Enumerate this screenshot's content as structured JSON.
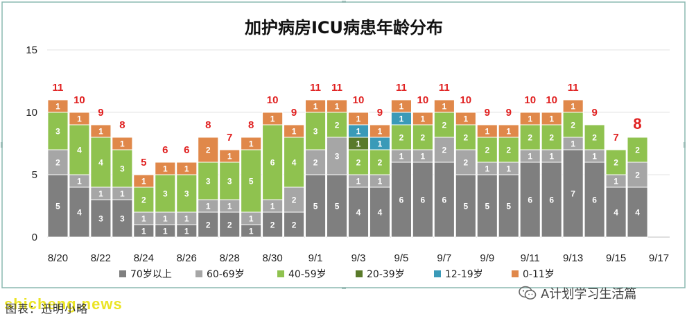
{
  "colors": {
    "70_plus": "#7f7f7f",
    "60_69": "#a6a6a6",
    "40_59": "#8fc24f",
    "20_39": "#5a7a2a",
    "12_19": "#3a9ab8",
    "0_11": "#e0884a",
    "total_label": "#e02020",
    "frame_border": "#8ab8b0"
  },
  "footer": {
    "source": "图表：迅明小略",
    "watermark": "shicheng.news",
    "brand": "A计划学习生活篇",
    "brand_icon": "wechat-icon"
  },
  "chart_data": {
    "type": "bar",
    "stacked": true,
    "title": "加护病房ICU病患年龄分布",
    "xlabel": "",
    "ylabel": "",
    "ylim": [
      0,
      15
    ],
    "yticks": [
      0,
      5,
      10,
      15
    ],
    "grid": true,
    "legend_position": "bottom",
    "categories": [
      "8/20",
      "8/21",
      "8/22",
      "8/23",
      "8/24",
      "8/25",
      "8/26",
      "8/27",
      "8/28",
      "8/29",
      "8/30",
      "8/31",
      "9/1",
      "9/2",
      "9/3",
      "9/4",
      "9/5",
      "9/6",
      "9/7",
      "9/8",
      "9/9",
      "9/10",
      "9/11",
      "9/12",
      "9/13",
      "9/14",
      "9/15",
      "9/16",
      "9/17"
    ],
    "xtick_labels": [
      "8/20",
      "8/22",
      "8/24",
      "8/26",
      "8/28",
      "8/30",
      "9/1",
      "9/3",
      "9/5",
      "9/7",
      "9/9",
      "9/11",
      "9/13",
      "9/15",
      "9/17"
    ],
    "series": [
      {
        "name": "70岁以上",
        "color_key": "70_plus",
        "values": [
          5,
          4,
          3,
          3,
          1,
          1,
          1,
          2,
          2,
          1,
          2,
          2,
          5,
          5,
          4,
          4,
          6,
          6,
          6,
          5,
          5,
          5,
          6,
          6,
          7,
          6,
          4,
          4,
          null
        ]
      },
      {
        "name": "60-69岁",
        "color_key": "60_69",
        "values": [
          2,
          1,
          1,
          1,
          1,
          1,
          1,
          1,
          1,
          1,
          1,
          2,
          2,
          3,
          1,
          1,
          1,
          1,
          2,
          2,
          1,
          1,
          1,
          1,
          1,
          1,
          1,
          2,
          null
        ]
      },
      {
        "name": "40-59岁",
        "color_key": "40_59",
        "values": [
          3,
          4,
          4,
          3,
          2,
          3,
          3,
          3,
          3,
          5,
          6,
          4,
          3,
          2,
          2,
          2,
          2,
          2,
          2,
          2,
          2,
          2,
          2,
          2,
          2,
          2,
          2,
          2,
          null
        ]
      },
      {
        "name": "20-39岁",
        "color_key": "20_39",
        "values": [
          0,
          0,
          0,
          0,
          0,
          0,
          0,
          0,
          0,
          0,
          0,
          0,
          0,
          0,
          1,
          0,
          0,
          0,
          0,
          0,
          0,
          0,
          0,
          0,
          0,
          0,
          0,
          0,
          null
        ]
      },
      {
        "name": "12-19岁",
        "color_key": "12_19",
        "values": [
          0,
          0,
          0,
          0,
          0,
          0,
          0,
          0,
          0,
          0,
          0,
          0,
          0,
          0,
          1,
          1,
          1,
          0,
          0,
          0,
          0,
          0,
          0,
          0,
          0,
          0,
          0,
          0,
          null
        ]
      },
      {
        "name": "0-11岁",
        "color_key": "0_11",
        "values": [
          1,
          1,
          1,
          1,
          1,
          1,
          1,
          2,
          1,
          1,
          1,
          1,
          1,
          1,
          1,
          1,
          1,
          1,
          1,
          1,
          1,
          1,
          1,
          1,
          1,
          0,
          0,
          0,
          null
        ]
      }
    ],
    "totals": [
      11,
      10,
      9,
      8,
      5,
      6,
      6,
      8,
      7,
      8,
      10,
      9,
      11,
      11,
      10,
      9,
      11,
      10,
      11,
      10,
      9,
      9,
      10,
      10,
      11,
      9,
      7,
      8,
      null
    ],
    "emphasized_total_index": 27
  }
}
